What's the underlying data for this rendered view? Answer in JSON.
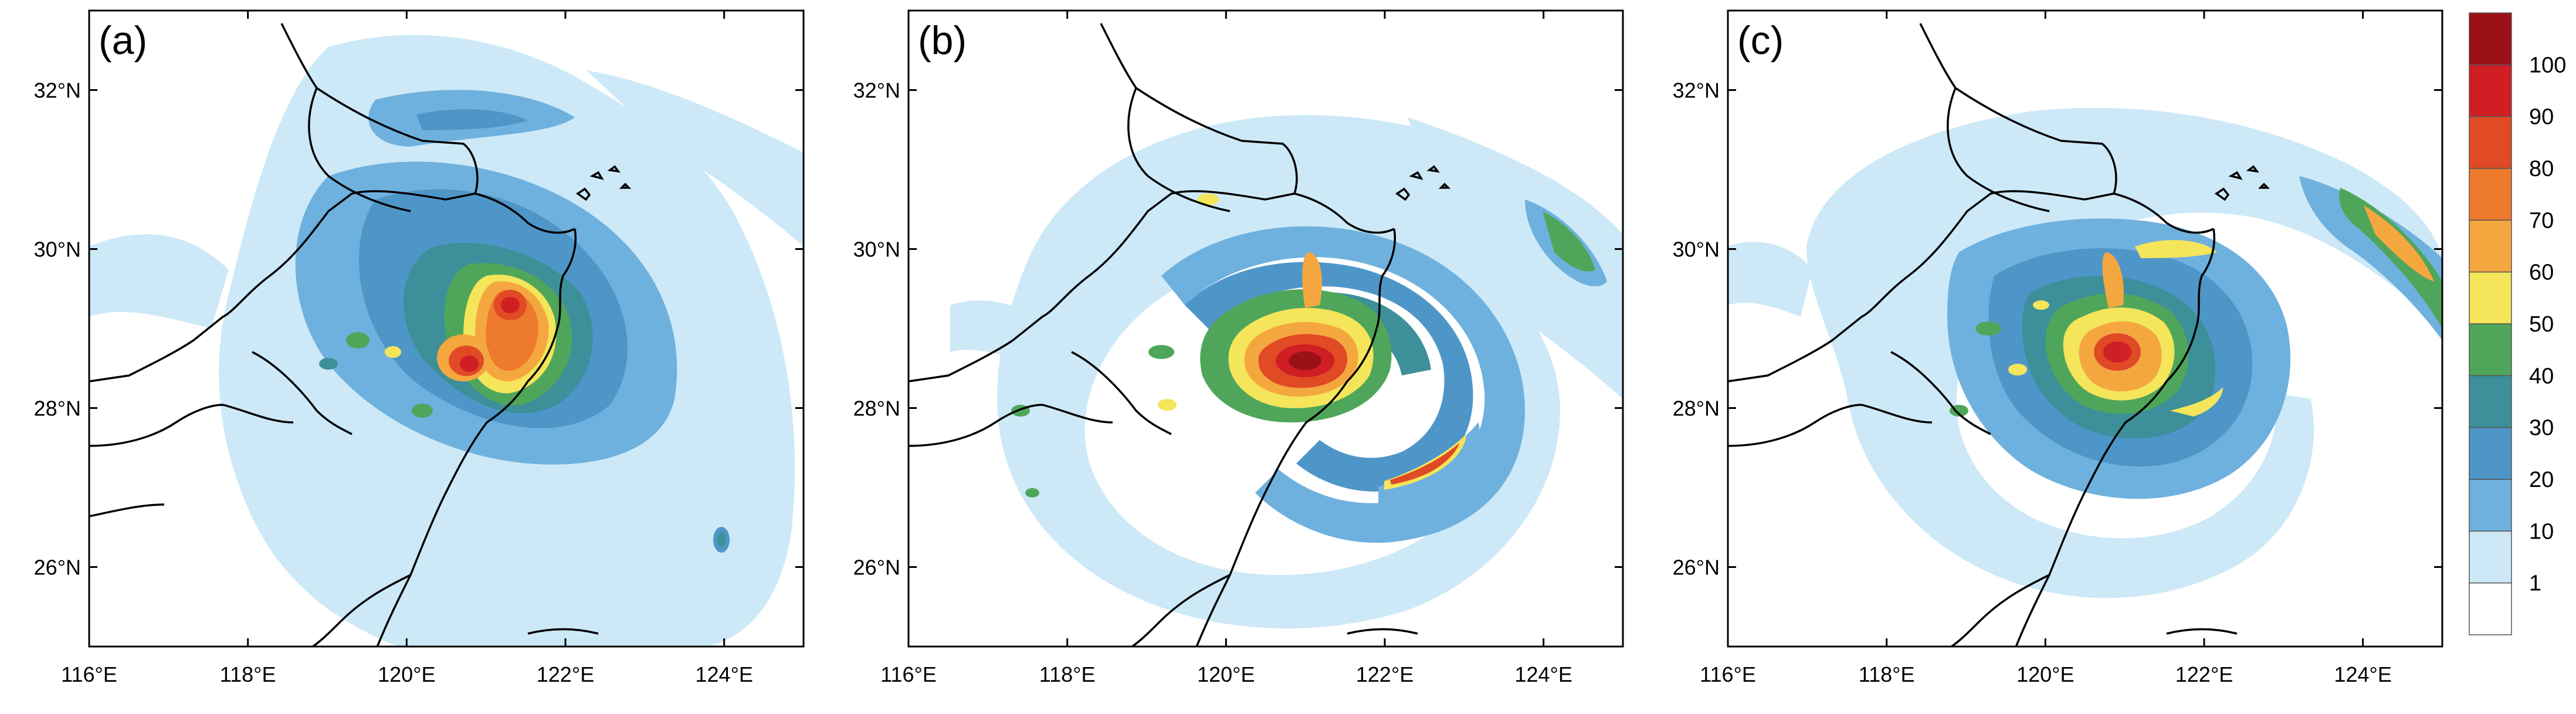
{
  "panels": [
    {
      "label": "(a)",
      "id": "a"
    },
    {
      "label": "(b)",
      "id": "b"
    },
    {
      "label": "(c)",
      "id": "c"
    }
  ],
  "axes": {
    "x_ticks": [
      "116°E",
      "118°E",
      "120°E",
      "122°E",
      "124°E"
    ],
    "y_ticks": [
      "32°N",
      "30°N",
      "28°N",
      "26°N"
    ],
    "lon_range": [
      116,
      125
    ],
    "lat_range": [
      25,
      33
    ]
  },
  "colorbar": {
    "labels": [
      "1",
      "10",
      "20",
      "30",
      "40",
      "50",
      "60",
      "70",
      "80",
      "90",
      "100"
    ],
    "colors": [
      "#ffffff",
      "#cde9f7",
      "#6fb1de",
      "#4f96c8",
      "#3d8f9a",
      "#4fa65a",
      "#f4e55a",
      "#f5a73f",
      "#ee7a2e",
      "#e04a25",
      "#cf1f24",
      "#9c1118"
    ]
  }
}
